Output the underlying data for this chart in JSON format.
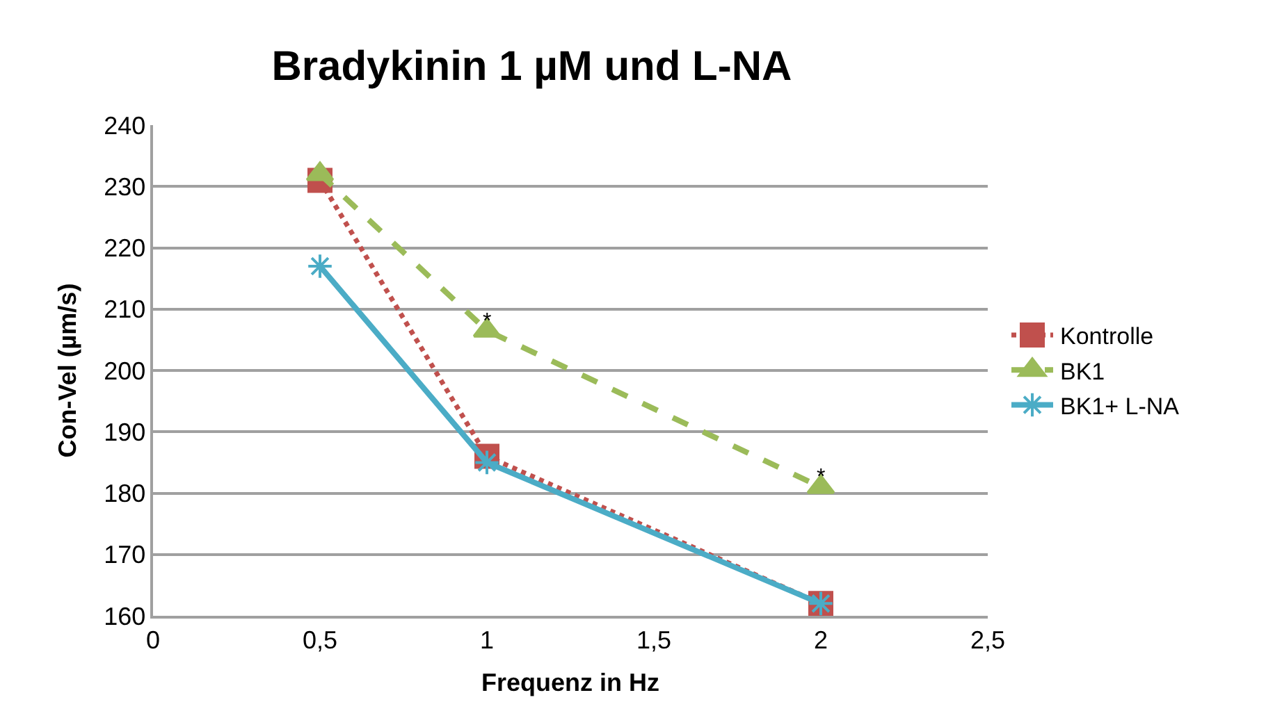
{
  "chart_data": {
    "type": "line",
    "title": "Bradykinin 1 µM und L-NA",
    "xlabel": "Frequenz in Hz",
    "ylabel": "Con-Vel (µm/s)",
    "x": [
      0.5,
      1,
      2
    ],
    "series": [
      {
        "name": "Kontrolle",
        "color": "#c0504d",
        "values": [
          231,
          186,
          162
        ],
        "marker": "square",
        "line_style": "dotted"
      },
      {
        "name": "BK1",
        "color": "#9bbb59",
        "values": [
          232,
          206.5,
          181
        ],
        "marker": "triangle",
        "line_style": "dashed"
      },
      {
        "name": "BK1+ L-NA",
        "color": "#4bacc6",
        "values": [
          217,
          185,
          162
        ],
        "marker": "cross",
        "line_style": "solid"
      }
    ],
    "annotations": [
      {
        "text": "*",
        "x": 1,
        "y": 208
      },
      {
        "text": "*",
        "x": 2,
        "y": 182.5
      }
    ],
    "xlim": [
      0,
      2.5
    ],
    "xticks": [
      0,
      {
        "value": 0.5,
        "label": "0,5"
      },
      1,
      {
        "value": 1.5,
        "label": "1,5"
      },
      2,
      {
        "value": 2.5,
        "label": "2,5"
      }
    ],
    "ylim": [
      160,
      240
    ],
    "yticks": [
      160,
      170,
      180,
      190,
      200,
      210,
      220,
      230,
      240
    ],
    "grid": "y",
    "legend": "right"
  }
}
